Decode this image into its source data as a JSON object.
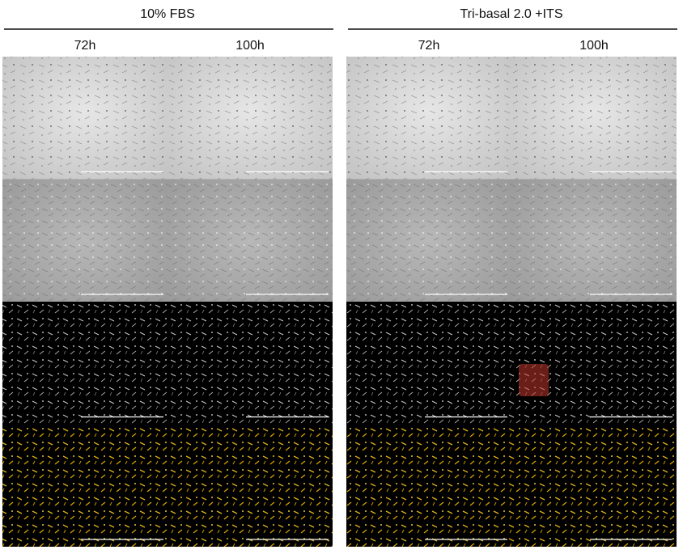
{
  "panels": [
    {
      "title": "10% FBS",
      "columns": [
        "72h",
        "100h"
      ]
    },
    {
      "title": "Tri-basal 2.0 +ITS",
      "columns": [
        "72h",
        "100h"
      ]
    }
  ]
}
